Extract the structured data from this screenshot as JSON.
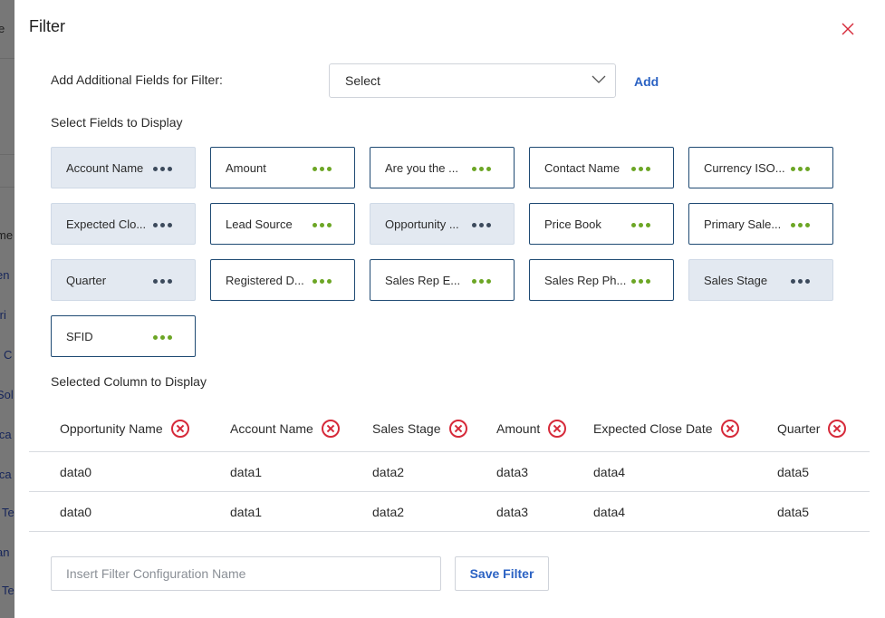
{
  "background": {
    "fragments": [
      "e",
      "me",
      "en",
      "tri",
      "C",
      "Sol",
      "ica",
      "ica",
      "Te",
      "an",
      "Te"
    ]
  },
  "modal": {
    "title": "Filter",
    "close_icon": "close-x-icon",
    "add_fields_label": "Add Additional Fields for Filter:",
    "select_value": "Select",
    "add_label": "Add",
    "fields_heading": "Select Fields to Display",
    "fields": [
      {
        "label": "Account Name",
        "selected": true
      },
      {
        "label": "Amount",
        "selected": false
      },
      {
        "label": "Are you the ...",
        "selected": false
      },
      {
        "label": "Contact Name",
        "selected": false
      },
      {
        "label": "Currency ISO...",
        "selected": false
      },
      {
        "label": "Expected Clo...",
        "selected": true
      },
      {
        "label": "Lead Source",
        "selected": false
      },
      {
        "label": "Opportunity ...",
        "selected": true
      },
      {
        "label": "Price Book",
        "selected": false
      },
      {
        "label": "Primary Sale...",
        "selected": false
      },
      {
        "label": "Quarter",
        "selected": true
      },
      {
        "label": "Registered D...",
        "selected": false
      },
      {
        "label": "Sales Rep E...",
        "selected": false
      },
      {
        "label": "Sales Rep Ph...",
        "selected": false
      },
      {
        "label": "Sales Stage",
        "selected": true
      },
      {
        "label": "SFID",
        "selected": false
      }
    ],
    "columns_heading": "Selected Column to Display",
    "table": {
      "headers": [
        "Opportunity Name",
        "Account Name",
        "Sales Stage",
        "Amount",
        "Expected Close Date",
        "Quarter"
      ],
      "rows": [
        [
          "data0",
          "data1",
          "data2",
          "data3",
          "data4",
          "data5"
        ],
        [
          "data0",
          "data1",
          "data2",
          "data3",
          "data4",
          "data5"
        ]
      ]
    },
    "name_placeholder": "Insert Filter Configuration Name",
    "save_label": "Save Filter"
  },
  "colors": {
    "accent_blue": "#2b62c3",
    "dots_green": "#6ca625",
    "remove_red": "#d62a3a",
    "chip_border": "#1f4a73",
    "chip_selected_bg": "#e3e9f1"
  }
}
